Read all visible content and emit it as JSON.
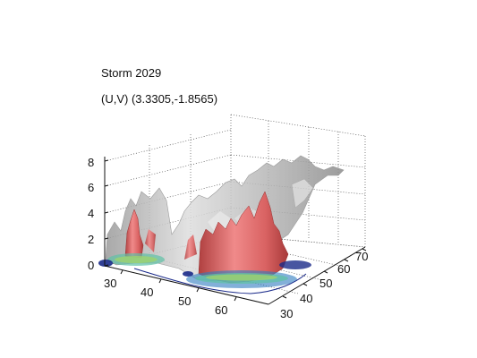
{
  "figure": {
    "title": "Storm 2029",
    "subtitle": "(U,V) (3.3305,-1.8565)"
  },
  "axes": {
    "z_ticks": [
      "0",
      "2",
      "4",
      "6",
      "8"
    ],
    "x_ticks": [
      "30",
      "40",
      "50",
      "60"
    ],
    "y_ticks": [
      "30",
      "40",
      "50",
      "60",
      "70"
    ]
  },
  "surfaces": {
    "outer_isosurface_color": "#bdbdbd",
    "inner_isosurface_color": "#e06060",
    "base_contour_colors": [
      "#1a2a8a",
      "#2e7bbf",
      "#5fc2a6",
      "#9ed36e"
    ]
  }
}
